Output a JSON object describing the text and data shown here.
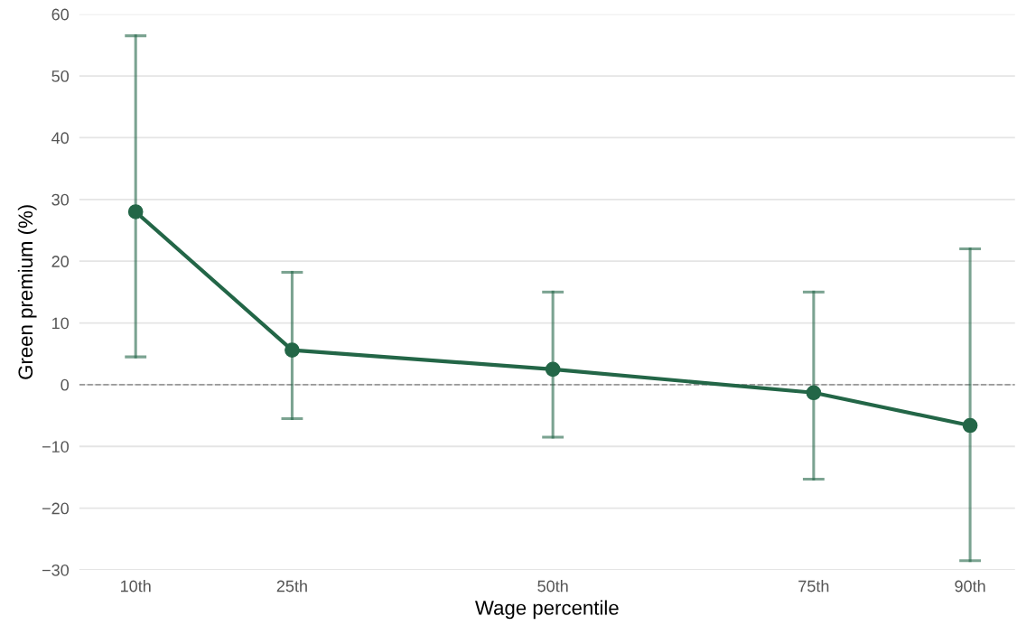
{
  "chart_data": {
    "type": "line",
    "xlabel": "Wage percentile",
    "ylabel": "Green premium (%)",
    "x": [
      10,
      25,
      50,
      75,
      90
    ],
    "series": [
      {
        "color": "#236647",
        "values": [
          28,
          5.6,
          2.5,
          -1.3,
          -6.6
        ],
        "errors": [
          [
            4.5,
            56.5
          ],
          [
            -5.5,
            18.2
          ],
          [
            -8.5,
            15
          ],
          [
            -15.3,
            15
          ],
          [
            -28.5,
            22
          ]
        ]
      }
    ],
    "marker": "circle",
    "line_style": "solid",
    "xlim": [
      4.6,
      94.3
    ],
    "ylim": [
      -30,
      60
    ],
    "xticks": [
      {
        "value": 10,
        "label": "10th"
      },
      {
        "value": 25,
        "label": "25th"
      },
      {
        "value": 50,
        "label": "50th"
      },
      {
        "value": 75,
        "label": "75th"
      },
      {
        "value": 90,
        "label": "90th"
      }
    ],
    "yticks": [
      {
        "value": -30,
        "label": "−30"
      },
      {
        "value": -20,
        "label": "−20"
      },
      {
        "value": -10,
        "label": "−10"
      },
      0,
      10,
      20,
      30,
      40,
      50,
      60
    ],
    "ref_lines": [
      {
        "axis": "y",
        "value": 0,
        "color": "#999999",
        "line_style": "dashed"
      }
    ],
    "grid": "y",
    "legend": false
  }
}
